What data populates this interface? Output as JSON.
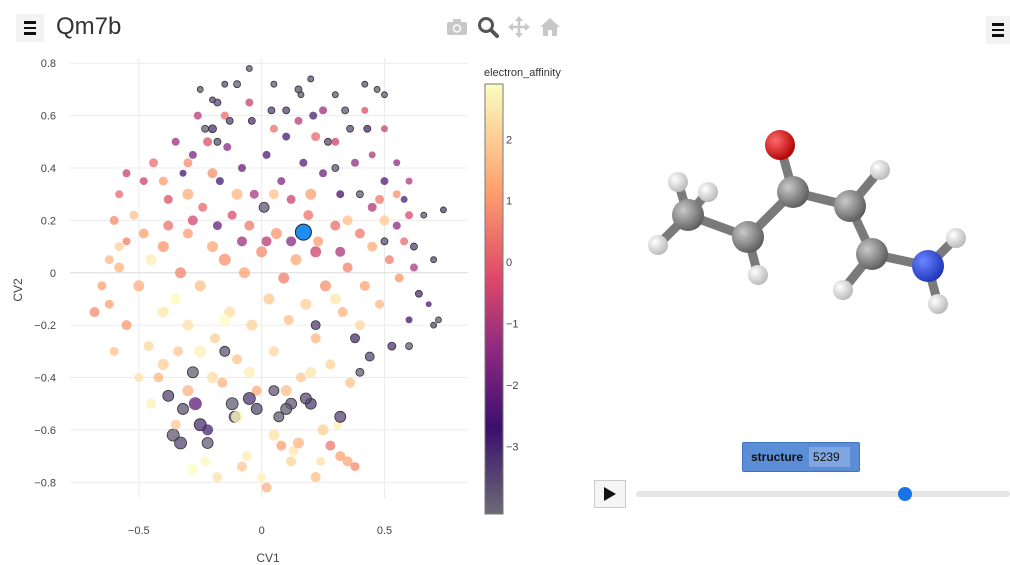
{
  "app": {
    "title": "Qm7b"
  },
  "modebar": {
    "icons": [
      "camera-icon",
      "zoom-icon",
      "pan-icon",
      "home-icon"
    ]
  },
  "structure": {
    "label": "structure",
    "value": "5239"
  },
  "player": {
    "slider_fraction": 0.72
  },
  "colors": {
    "highlight": "#1f8ef1",
    "slider": "#1a73e8"
  },
  "chart_data": {
    "type": "scatter",
    "xlabel": "CV1",
    "ylabel": "CV2",
    "xlim": [
      -0.78,
      0.84
    ],
    "ylim": [
      -0.86,
      0.82
    ],
    "xticks": [
      -0.5,
      0,
      0.5
    ],
    "yticks": [
      0.8,
      0.6,
      0.4,
      0.2,
      0,
      -0.2,
      -0.4,
      -0.6,
      -0.8
    ],
    "grid": true,
    "colorbar": {
      "title": "electron_affinity",
      "range": [
        -4.1,
        2.9
      ],
      "ticks": [
        2,
        1,
        0,
        -1,
        -2,
        -3
      ]
    },
    "highlight": {
      "x": 0.17,
      "y": 0.155,
      "color": "#1f8ef1"
    },
    "points": [
      [
        -0.68,
        -0.15,
        0.8,
        8
      ],
      [
        -0.62,
        -0.12,
        1.2,
        7
      ],
      [
        -0.58,
        0.02,
        1.5,
        8
      ],
      [
        -0.55,
        0.12,
        0.6,
        6
      ],
      [
        -0.52,
        0.22,
        1.8,
        7
      ],
      [
        -0.5,
        -0.05,
        1.4,
        9
      ],
      [
        -0.48,
        0.35,
        -0.5,
        6
      ],
      [
        -0.46,
        -0.28,
        2.2,
        8
      ],
      [
        -0.44,
        0.42,
        0.3,
        7
      ],
      [
        -0.42,
        -0.4,
        1.6,
        8
      ],
      [
        -0.4,
        0.1,
        1.0,
        9
      ],
      [
        -0.4,
        -0.15,
        2.5,
        9
      ],
      [
        -0.38,
        0.28,
        -0.2,
        7
      ],
      [
        -0.38,
        -0.47,
        -3.5,
        9
      ],
      [
        -0.36,
        -0.62,
        -3.8,
        10
      ],
      [
        -0.35,
        0.5,
        -1.2,
        6
      ],
      [
        -0.34,
        -0.3,
        1.9,
        8
      ],
      [
        -0.33,
        0.0,
        0.7,
        9
      ],
      [
        -0.32,
        0.38,
        -2.5,
        5
      ],
      [
        -0.3,
        -0.2,
        2.4,
        9
      ],
      [
        -0.3,
        0.15,
        1.1,
        8
      ],
      [
        -0.28,
        -0.38,
        -3.9,
        9
      ],
      [
        -0.28,
        0.45,
        -1.8,
        6
      ],
      [
        -0.27,
        -0.5,
        -2.2,
        11
      ],
      [
        -0.26,
        0.6,
        -0.8,
        6
      ],
      [
        -0.25,
        -0.05,
        1.7,
        9
      ],
      [
        -0.24,
        0.25,
        0.2,
        7
      ],
      [
        -0.23,
        -0.72,
        2.8,
        8
      ],
      [
        -0.22,
        -0.6,
        -3.0,
        9
      ],
      [
        -0.2,
        0.55,
        -3.2,
        6
      ],
      [
        -0.2,
        0.1,
        1.3,
        9
      ],
      [
        -0.19,
        -0.25,
        2.0,
        8
      ],
      [
        -0.18,
        0.65,
        -3.6,
        5
      ],
      [
        -0.17,
        0.35,
        -2.8,
        6
      ],
      [
        -0.16,
        -0.42,
        1.5,
        8
      ],
      [
        -0.15,
        0.05,
        0.9,
        10
      ],
      [
        -0.14,
        0.48,
        -1.5,
        6
      ],
      [
        -0.13,
        -0.15,
        2.3,
        9
      ],
      [
        -0.12,
        0.22,
        -0.3,
        7
      ],
      [
        -0.11,
        -0.55,
        -3.7,
        9
      ],
      [
        -0.1,
        0.72,
        -3.9,
        5
      ],
      [
        -0.1,
        -0.33,
        1.8,
        8
      ],
      [
        -0.08,
        0.4,
        -2.0,
        6
      ],
      [
        -0.07,
        0.0,
        1.2,
        9
      ],
      [
        -0.06,
        -0.7,
        2.6,
        8
      ],
      [
        -0.05,
        0.18,
        0.5,
        8
      ],
      [
        -0.04,
        -0.2,
        2.1,
        9
      ],
      [
        -0.04,
        0.58,
        -3.3,
        5
      ],
      [
        -0.03,
        0.3,
        -1.0,
        7
      ],
      [
        -0.02,
        -0.45,
        1.4,
        8
      ],
      [
        0.0,
        0.08,
        0.8,
        9
      ],
      [
        0.0,
        -0.78,
        2.7,
        7
      ],
      [
        0.01,
        0.25,
        -3.8,
        8
      ],
      [
        0.02,
        0.45,
        -2.4,
        6
      ],
      [
        0.03,
        -0.1,
        1.9,
        9
      ],
      [
        0.04,
        0.62,
        -3.5,
        5
      ],
      [
        0.05,
        -0.3,
        2.2,
        8
      ],
      [
        0.06,
        0.15,
        1.0,
        9
      ],
      [
        0.07,
        -0.55,
        -3.9,
        8
      ],
      [
        0.08,
        0.35,
        -1.6,
        6
      ],
      [
        0.09,
        -0.02,
        0.6,
        9
      ],
      [
        0.1,
        0.52,
        -2.9,
        6
      ],
      [
        0.11,
        -0.18,
        1.7,
        8
      ],
      [
        0.12,
        0.28,
        -0.6,
        7
      ],
      [
        0.13,
        -0.68,
        2.5,
        8
      ],
      [
        0.14,
        0.05,
        1.3,
        9
      ],
      [
        0.15,
        0.7,
        -3.7,
        5
      ],
      [
        0.16,
        -0.4,
        1.9,
        8
      ],
      [
        0.17,
        0.42,
        -2.2,
        6
      ],
      [
        0.18,
        -0.12,
        2.0,
        9
      ],
      [
        0.19,
        0.22,
        0.4,
        8
      ],
      [
        0.2,
        -0.5,
        -3.4,
        9
      ],
      [
        0.21,
        0.6,
        -3.0,
        6
      ],
      [
        0.22,
        -0.25,
        1.6,
        8
      ],
      [
        0.23,
        0.12,
        1.1,
        8
      ],
      [
        0.24,
        -0.72,
        2.4,
        7
      ],
      [
        0.25,
        0.38,
        -1.9,
        6
      ],
      [
        0.26,
        -0.05,
        0.9,
        9
      ],
      [
        0.27,
        0.5,
        -3.6,
        5
      ],
      [
        0.28,
        -0.35,
        2.1,
        8
      ],
      [
        0.3,
        0.18,
        0.3,
        8
      ],
      [
        0.31,
        -0.58,
        2.6,
        7
      ],
      [
        0.32,
        0.3,
        -2.6,
        6
      ],
      [
        0.33,
        -0.15,
        1.5,
        8
      ],
      [
        0.34,
        0.62,
        -3.8,
        5
      ],
      [
        0.35,
        0.02,
        0.7,
        8
      ],
      [
        0.36,
        -0.42,
        1.8,
        8
      ],
      [
        0.38,
        0.42,
        -1.4,
        6
      ],
      [
        0.38,
        -0.25,
        -3.2,
        7
      ],
      [
        0.4,
        0.15,
        0.5,
        8
      ],
      [
        0.42,
        -0.05,
        1.2,
        8
      ],
      [
        0.43,
        0.55,
        -3.1,
        5
      ],
      [
        0.44,
        -0.32,
        -3.6,
        7
      ],
      [
        0.45,
        0.25,
        -0.9,
        7
      ],
      [
        0.47,
        0.7,
        -3.9,
        4
      ],
      [
        0.48,
        -0.12,
        1.6,
        7
      ],
      [
        0.5,
        0.35,
        -2.3,
        6
      ],
      [
        0.52,
        0.05,
        0.6,
        7
      ],
      [
        0.53,
        -0.28,
        -3.3,
        6
      ],
      [
        0.55,
        0.18,
        -1.5,
        6
      ],
      [
        0.56,
        -0.02,
        1.0,
        7
      ],
      [
        0.58,
        0.28,
        -3.0,
        5
      ],
      [
        0.6,
        -0.18,
        -2.8,
        5
      ],
      [
        0.62,
        0.1,
        -3.5,
        5
      ],
      [
        0.64,
        -0.08,
        -3.2,
        5
      ],
      [
        0.66,
        0.22,
        -3.8,
        4
      ],
      [
        0.68,
        -0.12,
        -2.5,
        4
      ],
      [
        0.7,
        0.05,
        -3.6,
        4
      ],
      [
        0.72,
        -0.18,
        -3.9,
        4
      ],
      [
        0.74,
        0.24,
        -3.4,
        4
      ],
      [
        -0.45,
        0.05,
        2.6,
        9
      ],
      [
        -0.35,
        -0.1,
        2.8,
        9
      ],
      [
        -0.25,
        -0.3,
        2.7,
        10
      ],
      [
        -0.15,
        -0.18,
        2.9,
        10
      ],
      [
        -0.05,
        -0.38,
        2.6,
        9
      ],
      [
        -0.3,
        0.3,
        1.4,
        9
      ],
      [
        -0.2,
        0.38,
        0.9,
        8
      ],
      [
        -0.1,
        0.3,
        1.6,
        9
      ],
      [
        0.05,
        0.3,
        1.8,
        8
      ],
      [
        0.2,
        0.3,
        1.2,
        9
      ],
      [
        0.35,
        0.2,
        1.7,
        8
      ],
      [
        0.45,
        0.1,
        1.4,
        8
      ],
      [
        0.5,
        0.2,
        1.9,
        8
      ],
      [
        0.4,
        -0.2,
        2.2,
        8
      ],
      [
        0.3,
        -0.1,
        2.5,
        9
      ],
      [
        -0.1,
        -0.55,
        2.8,
        10
      ],
      [
        0.05,
        -0.62,
        2.4,
        9
      ],
      [
        0.15,
        -0.65,
        1.6,
        9
      ],
      [
        0.25,
        -0.6,
        2.0,
        9
      ],
      [
        0.35,
        -0.72,
        1.3,
        8
      ],
      [
        -0.4,
        -0.35,
        2.0,
        9
      ],
      [
        -0.3,
        -0.45,
        1.5,
        9
      ],
      [
        -0.2,
        -0.4,
        2.3,
        9
      ],
      [
        0.1,
        -0.45,
        1.7,
        9
      ],
      [
        0.2,
        -0.38,
        2.5,
        9
      ],
      [
        -0.55,
        -0.2,
        1.0,
        8
      ],
      [
        -0.6,
        -0.3,
        1.8,
        7
      ],
      [
        -0.5,
        -0.4,
        2.4,
        7
      ],
      [
        -0.45,
        -0.5,
        2.7,
        8
      ],
      [
        -0.35,
        -0.58,
        1.9,
        8
      ],
      [
        -0.28,
        -0.75,
        2.9,
        9
      ],
      [
        -0.18,
        -0.78,
        2.4,
        8
      ],
      [
        -0.08,
        -0.74,
        1.9,
        8
      ],
      [
        0.02,
        -0.82,
        1.5,
        8
      ],
      [
        0.12,
        -0.72,
        2.1,
        8
      ],
      [
        0.22,
        -0.78,
        1.7,
        8
      ],
      [
        0.32,
        -0.7,
        1.2,
        8
      ],
      [
        0.38,
        -0.74,
        0.8,
        7
      ],
      [
        0.28,
        -0.66,
        0.5,
        8
      ],
      [
        0.08,
        -0.66,
        1.1,
        8
      ],
      [
        -0.08,
        0.12,
        -1.2,
        8
      ],
      [
        0.02,
        0.12,
        -0.8,
        8
      ],
      [
        0.12,
        0.12,
        -1.5,
        8
      ],
      [
        0.22,
        0.08,
        -0.5,
        9
      ],
      [
        0.32,
        0.08,
        -1.0,
        8
      ],
      [
        -0.18,
        0.18,
        -2.0,
        7
      ],
      [
        -0.28,
        0.2,
        -0.4,
        8
      ],
      [
        -0.38,
        0.18,
        0.4,
        8
      ],
      [
        -0.48,
        0.15,
        1.2,
        8
      ],
      [
        -0.58,
        0.1,
        2.0,
        7
      ],
      [
        0.25,
        0.62,
        -1.2,
        6
      ],
      [
        0.3,
        0.5,
        -0.5,
        6
      ],
      [
        0.22,
        0.52,
        0.2,
        7
      ],
      [
        0.15,
        0.58,
        -0.8,
        6
      ],
      [
        0.05,
        0.55,
        0.4,
        6
      ],
      [
        -0.05,
        0.65,
        -0.6,
        6
      ],
      [
        -0.15,
        0.6,
        0.3,
        6
      ],
      [
        -0.22,
        0.5,
        -0.2,
        7
      ],
      [
        -0.3,
        0.42,
        0.8,
        7
      ],
      [
        -0.4,
        0.35,
        1.1,
        7
      ],
      [
        0.45,
        0.45,
        -1.0,
        5
      ],
      [
        0.5,
        0.55,
        -0.6,
        5
      ],
      [
        0.42,
        0.62,
        -0.2,
        5
      ],
      [
        0.55,
        0.42,
        -1.4,
        5
      ],
      [
        0.6,
        0.35,
        -0.9,
        5
      ],
      [
        0.48,
        0.28,
        0.5,
        7
      ],
      [
        0.55,
        0.3,
        0.9,
        6
      ],
      [
        0.6,
        0.22,
        -0.3,
        6
      ],
      [
        0.58,
        0.12,
        0.2,
        6
      ],
      [
        0.62,
        0.02,
        -1.0,
        6
      ],
      [
        -0.62,
        0.05,
        1.6,
        7
      ],
      [
        -0.65,
        -0.05,
        1.1,
        7
      ],
      [
        -0.6,
        0.2,
        0.8,
        7
      ],
      [
        -0.58,
        0.3,
        0.2,
        6
      ],
      [
        -0.55,
        0.38,
        -0.6,
        6
      ],
      [
        -0.12,
        -0.5,
        -3.9,
        10
      ],
      [
        -0.02,
        -0.52,
        -3.6,
        9
      ],
      [
        -0.25,
        -0.58,
        -3.2,
        10
      ],
      [
        0.12,
        -0.5,
        -3.8,
        9
      ],
      [
        0.32,
        -0.55,
        -3.5,
        9
      ],
      [
        -0.32,
        -0.52,
        -3.7,
        9
      ],
      [
        -0.22,
        -0.65,
        -3.9,
        9
      ],
      [
        0.18,
        -0.48,
        -3.6,
        9
      ],
      [
        -0.05,
        -0.48,
        -3.3,
        10
      ],
      [
        0.1,
        -0.52,
        -3.9,
        9
      ],
      [
        -0.33,
        -0.65,
        -3.5,
        10
      ],
      [
        -0.15,
        -0.3,
        -3.7,
        8
      ],
      [
        0.05,
        -0.45,
        -3.8,
        8
      ],
      [
        0.22,
        -0.2,
        -3.4,
        7
      ],
      [
        0.4,
        -0.38,
        -3.9,
        6
      ],
      [
        -0.23,
        0.55,
        -3.9,
        5
      ],
      [
        -0.18,
        0.5,
        -3.7,
        5
      ],
      [
        -0.13,
        0.58,
        -3.5,
        5
      ],
      [
        0.16,
        0.68,
        -3.9,
        4
      ],
      [
        0.2,
        0.74,
        -3.7,
        4
      ],
      [
        0.3,
        0.68,
        -3.9,
        4
      ],
      [
        0.36,
        0.55,
        -3.6,
        5
      ],
      [
        0.42,
        0.72,
        -3.8,
        4
      ],
      [
        0.5,
        0.68,
        -3.9,
        4
      ],
      [
        0.05,
        0.72,
        -3.9,
        4
      ],
      [
        -0.05,
        0.78,
        -3.8,
        4
      ],
      [
        -0.15,
        0.72,
        -3.7,
        4
      ],
      [
        -0.2,
        0.66,
        -3.6,
        4
      ],
      [
        -0.25,
        0.7,
        -3.9,
        4
      ],
      [
        0.1,
        0.62,
        -3.5,
        5
      ],
      [
        0.3,
        0.4,
        -3.8,
        5
      ],
      [
        0.4,
        0.3,
        -3.9,
        5
      ],
      [
        0.5,
        0.12,
        -3.7,
        5
      ],
      [
        0.6,
        -0.28,
        -3.9,
        5
      ],
      [
        0.7,
        -0.2,
        -3.6,
        4
      ]
    ]
  }
}
